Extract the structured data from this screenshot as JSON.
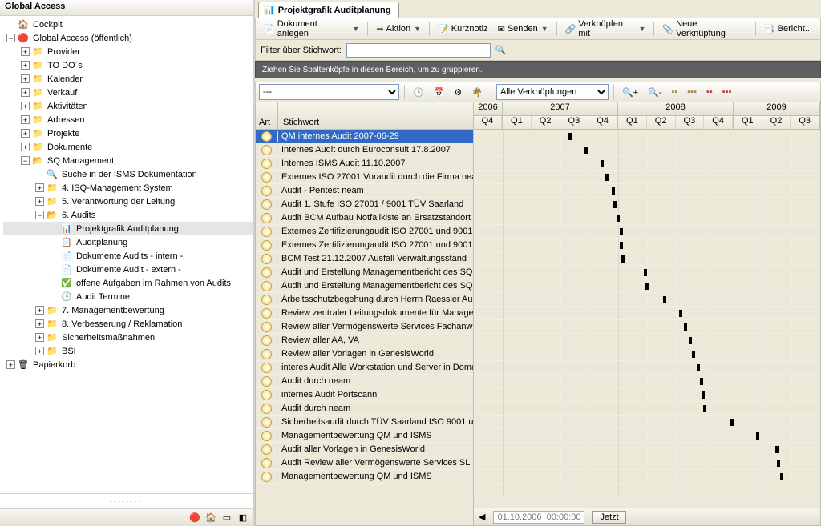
{
  "left": {
    "title": "Global Access",
    "tree": [
      {
        "lvl": 0,
        "exp": "",
        "ico": "🏠",
        "iconame": "home-icon",
        "label": "Cockpit"
      },
      {
        "lvl": 0,
        "exp": "−",
        "ico": "🔴",
        "iconame": "globe-icon",
        "label": "Global Access (öffentlich)"
      },
      {
        "lvl": 1,
        "exp": "+",
        "ico": "📁",
        "iconame": "folder-icon",
        "label": "Provider"
      },
      {
        "lvl": 1,
        "exp": "+",
        "ico": "📁",
        "iconame": "folder-icon",
        "label": "TO DO´s"
      },
      {
        "lvl": 1,
        "exp": "+",
        "ico": "📁",
        "iconame": "folder-icon",
        "label": "Kalender"
      },
      {
        "lvl": 1,
        "exp": "+",
        "ico": "📁",
        "iconame": "folder-icon",
        "label": "Verkauf"
      },
      {
        "lvl": 1,
        "exp": "+",
        "ico": "📁",
        "iconame": "folder-icon",
        "label": "Aktivitäten"
      },
      {
        "lvl": 1,
        "exp": "+",
        "ico": "📁",
        "iconame": "folder-icon",
        "label": "Adressen"
      },
      {
        "lvl": 1,
        "exp": "+",
        "ico": "📁",
        "iconame": "folder-icon",
        "label": "Projekte"
      },
      {
        "lvl": 1,
        "exp": "+",
        "ico": "📁",
        "iconame": "folder-icon",
        "label": "Dokumente"
      },
      {
        "lvl": 1,
        "exp": "−",
        "ico": "📂",
        "iconame": "folder-open-icon",
        "label": "SQ Management"
      },
      {
        "lvl": 2,
        "exp": "",
        "ico": "🔍",
        "iconame": "search-icon",
        "label": "Suche in der ISMS Dokumentation"
      },
      {
        "lvl": 2,
        "exp": "+",
        "ico": "📁",
        "iconame": "folder-icon",
        "label": "4. ISQ-Management System"
      },
      {
        "lvl": 2,
        "exp": "+",
        "ico": "📁",
        "iconame": "folder-icon",
        "label": "5. Verantwortung der Leitung"
      },
      {
        "lvl": 2,
        "exp": "−",
        "ico": "📂",
        "iconame": "folder-open-icon",
        "label": "6. Audits"
      },
      {
        "lvl": 3,
        "exp": "",
        "ico": "📊",
        "iconame": "chart-icon",
        "label": "Projektgrafik Auditplanung",
        "sel": true
      },
      {
        "lvl": 3,
        "exp": "",
        "ico": "📋",
        "iconame": "plan-icon",
        "label": "Auditplanung"
      },
      {
        "lvl": 3,
        "exp": "",
        "ico": "📄",
        "iconame": "doc-icon",
        "label": "Dokumente Audits - intern -"
      },
      {
        "lvl": 3,
        "exp": "",
        "ico": "📄",
        "iconame": "doc-icon",
        "label": "Dokumente Audit - extern -"
      },
      {
        "lvl": 3,
        "exp": "",
        "ico": "✅",
        "iconame": "tasks-icon",
        "label": "offene Aufgaben im Rahmen von Audits"
      },
      {
        "lvl": 3,
        "exp": "",
        "ico": "🕒",
        "iconame": "clock-icon",
        "label": "Audit Termine"
      },
      {
        "lvl": 2,
        "exp": "+",
        "ico": "📁",
        "iconame": "folder-icon",
        "label": "7. Managementbewertung"
      },
      {
        "lvl": 2,
        "exp": "+",
        "ico": "📁",
        "iconame": "folder-icon",
        "label": "8. Verbesserung / Reklamation"
      },
      {
        "lvl": 2,
        "exp": "+",
        "ico": "📁",
        "iconame": "folder-icon",
        "label": "Sicherheitsmaßnahmen"
      },
      {
        "lvl": 2,
        "exp": "+",
        "ico": "📁",
        "iconame": "folder-icon",
        "label": "BSI"
      },
      {
        "lvl": 0,
        "exp": "+",
        "ico": "🗑",
        "iconame": "trash-icon",
        "label": "Papierkorb"
      }
    ]
  },
  "tab": {
    "title": "Projektgrafik Auditplanung"
  },
  "tb1": {
    "doc": "Dokument anlegen",
    "action": "Aktion",
    "note": "Kurznotiz",
    "send": "Senden",
    "link": "Verknüpfen mit",
    "newlink": "Neue Verknüpfung",
    "report": "Bericht..."
  },
  "filter": {
    "label": "Filter über Stichwort:",
    "placeholder": ""
  },
  "groupby": "Ziehen Sie Spaltenköpfe in diesen Bereich, um zu gruppieren.",
  "tb2": {
    "dropdown1": "---",
    "dropdown2": "Alle Verknüpfungen"
  },
  "grid": {
    "col_art": "Art",
    "col_kw": "Stichwort",
    "years": [
      {
        "y": "2006",
        "q": [
          "Q4"
        ]
      },
      {
        "y": "2007",
        "q": [
          "Q1",
          "Q2",
          "Q3",
          "Q4"
        ]
      },
      {
        "y": "2008",
        "q": [
          "Q1",
          "Q2",
          "Q3",
          "Q4"
        ]
      },
      {
        "y": "2009",
        "q": [
          "Q1",
          "Q2",
          "Q3"
        ]
      }
    ],
    "qw": 36,
    "rows": [
      {
        "kw": "QM internes Audit 2007-06-29",
        "pos": 118,
        "sel": true
      },
      {
        "kw": "Internes Audit durch Euroconsult 17.8.2007",
        "pos": 138
      },
      {
        "kw": "Internes ISMS Audit 11.10.2007",
        "pos": 158
      },
      {
        "kw": "Externes ISO 27001 Voraudit durch die Firma nea",
        "pos": 164
      },
      {
        "kw": "Audit - Pentest neam",
        "pos": 172
      },
      {
        "kw": "Audit 1. Stufe ISO 27001 / 9001 TÜV Saarland",
        "pos": 174
      },
      {
        "kw": "Audit BCM Aufbau Notfallkiste an Ersatzstandort",
        "pos": 178
      },
      {
        "kw": "Externes Zertifizierungaudit ISO 27001 und 9001",
        "pos": 182
      },
      {
        "kw": "Externes Zertifizierungaudit ISO 27001 und 9001",
        "pos": 182
      },
      {
        "kw": "BCM Test 21.12.2007 Ausfall Verwaltungsstand",
        "pos": 184
      },
      {
        "kw": "Audit und Erstellung Managementbericht des SQM",
        "pos": 212
      },
      {
        "kw": "Audit und Erstellung Managementbericht des SQM",
        "pos": 214
      },
      {
        "kw": "Arbeitsschutzbegehung durch Herrn Raessler Au",
        "pos": 236
      },
      {
        "kw": "Review zentraler Leitungsdokumente für Manage",
        "pos": 256
      },
      {
        "kw": "Review aller Vermögenswerte Services Fachanw",
        "pos": 262
      },
      {
        "kw": "Review aller AA, VA",
        "pos": 268
      },
      {
        "kw": "Review aller Vorlagen in GenesisWorld",
        "pos": 272
      },
      {
        "kw": "interes Audit Alle Workstation und Server in Doma",
        "pos": 278
      },
      {
        "kw": "Audit durch neam",
        "pos": 282
      },
      {
        "kw": "internes Audit Portscann",
        "pos": 284
      },
      {
        "kw": "Audit durch neam",
        "pos": 286
      },
      {
        "kw": "Sicherheitsaudit durch TÜV Saarland ISO 9001 u",
        "pos": 320
      },
      {
        "kw": "Managementbewertung QM und ISMS",
        "pos": 352
      },
      {
        "kw": "Audit aller Vorlagen in GenesisWorld",
        "pos": 376
      },
      {
        "kw": "Audit Review aller Vermögenswerte Services SL",
        "pos": 378
      },
      {
        "kw": "Managementbewertung QM und ISMS",
        "pos": 382
      }
    ]
  },
  "status": {
    "date": "01.10.2006",
    "time": "00:00:00",
    "now": "Jetzt"
  },
  "colors": {
    "bg": "#ece9d8",
    "sel": "#316ac5",
    "border": "#c0c0b0"
  }
}
